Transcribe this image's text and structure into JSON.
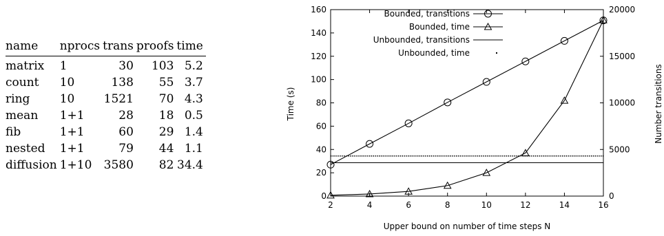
{
  "table": {
    "headers": [
      "name",
      "nprocs",
      "trans",
      "proofs",
      "time"
    ],
    "rows": [
      [
        "matrix",
        "1",
        "30",
        "103",
        "5.2"
      ],
      [
        "count",
        "10",
        "138",
        "55",
        "3.7"
      ],
      [
        "ring",
        "10",
        "1521",
        "70",
        "4.3"
      ],
      [
        "mean",
        "1+1",
        "28",
        "18",
        "0.5"
      ],
      [
        "fib",
        "1+1",
        "60",
        "29",
        "1.4"
      ],
      [
        "nested",
        "1+1",
        "79",
        "44",
        "1.1"
      ],
      [
        "diffusion",
        "1+10",
        "3580",
        "82",
        "34.4"
      ]
    ]
  },
  "chart_data": {
    "type": "line",
    "title": "",
    "xlabel": "Upper bound on number of time steps N",
    "ylabel": "Time (s)",
    "y2label": "Number transitions",
    "xlim": [
      2,
      16
    ],
    "ylim": [
      0,
      160
    ],
    "y2lim": [
      0,
      20000
    ],
    "xticks": [
      2,
      4,
      6,
      8,
      10,
      12,
      14,
      16
    ],
    "yticks": [
      0,
      20,
      40,
      60,
      80,
      100,
      120,
      140,
      160
    ],
    "y2ticks": [
      0,
      5000,
      10000,
      15000,
      20000
    ],
    "grid": false,
    "legend_position": "top-left",
    "series": [
      {
        "name": "Bounded, transitions",
        "axis": "right",
        "marker": "circle",
        "style": "solid",
        "x": [
          2,
          4,
          6,
          8,
          10,
          12,
          14,
          16
        ],
        "y": [
          3375,
          5600,
          7800,
          10050,
          12250,
          14450,
          16650,
          18850
        ]
      },
      {
        "name": "Bounded, time",
        "axis": "left",
        "marker": "triangle",
        "style": "solid",
        "x": [
          2,
          4,
          6,
          8,
          10,
          12,
          14,
          16
        ],
        "y": [
          0.7,
          1.8,
          4,
          9,
          20,
          37,
          82,
          151
        ]
      },
      {
        "name": "Unbounded, transitions",
        "axis": "right",
        "marker": "none",
        "style": "solid",
        "x": [
          2,
          16
        ],
        "y": [
          3580,
          3580
        ]
      },
      {
        "name": "Unbounded, time",
        "axis": "left",
        "marker": "none",
        "style": "dotted",
        "x": [
          2,
          16
        ],
        "y": [
          34.4,
          34.4
        ]
      }
    ]
  }
}
